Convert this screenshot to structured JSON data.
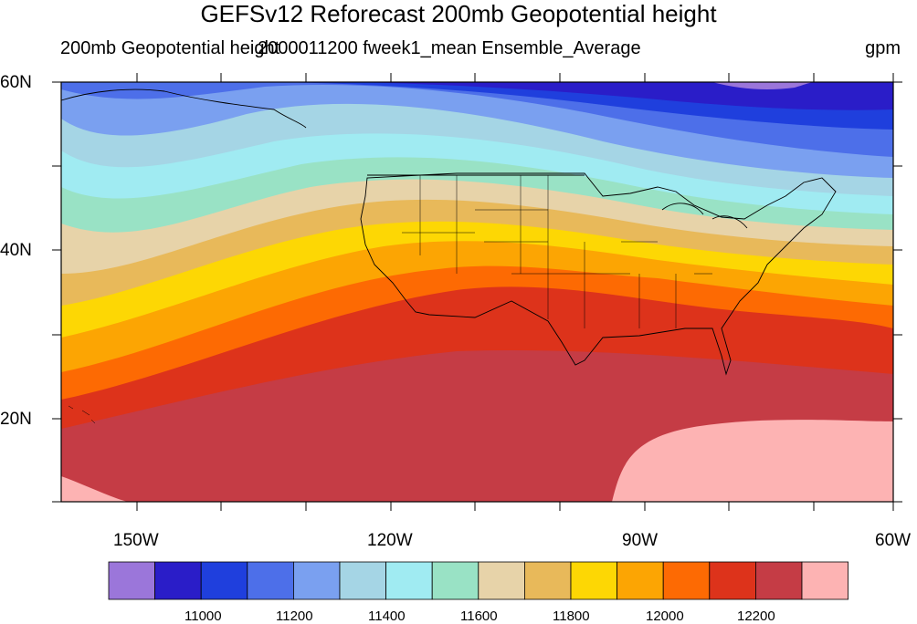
{
  "title": "GEFSv12 Reforecast 200mb Geopotential height",
  "subtitle_left": "200mb Geopotential height",
  "subtitle_center": "2000011200 fweek1_mean Ensemble_Average",
  "subtitle_right": "gpm",
  "map": {
    "region": "North America / Eastern Pacific",
    "lat_range": [
      10,
      60
    ],
    "lon_range": [
      -159,
      -60
    ],
    "lat_ticks": [
      "60N",
      "40N",
      "20N"
    ],
    "lon_ticks": [
      "150W",
      "120W",
      "90W",
      "60W"
    ]
  },
  "legend": {
    "levels": [
      "11000",
      "11200",
      "11400",
      "11600",
      "11800",
      "12000",
      "12200"
    ],
    "colors": [
      "#9b76da",
      "#2a1dc8",
      "#1f3fdd",
      "#4d6fe9",
      "#7aa0f0",
      "#a5d5e5",
      "#a0ebf2",
      "#99e2c5",
      "#e7d3a9",
      "#e8b95a",
      "#fdd704",
      "#fca503",
      "#fd6a03",
      "#dd331b",
      "#c53c45",
      "#fdb3b3"
    ]
  },
  "colors": {
    "land_outline": "#000000",
    "missing": "#dddddd"
  }
}
